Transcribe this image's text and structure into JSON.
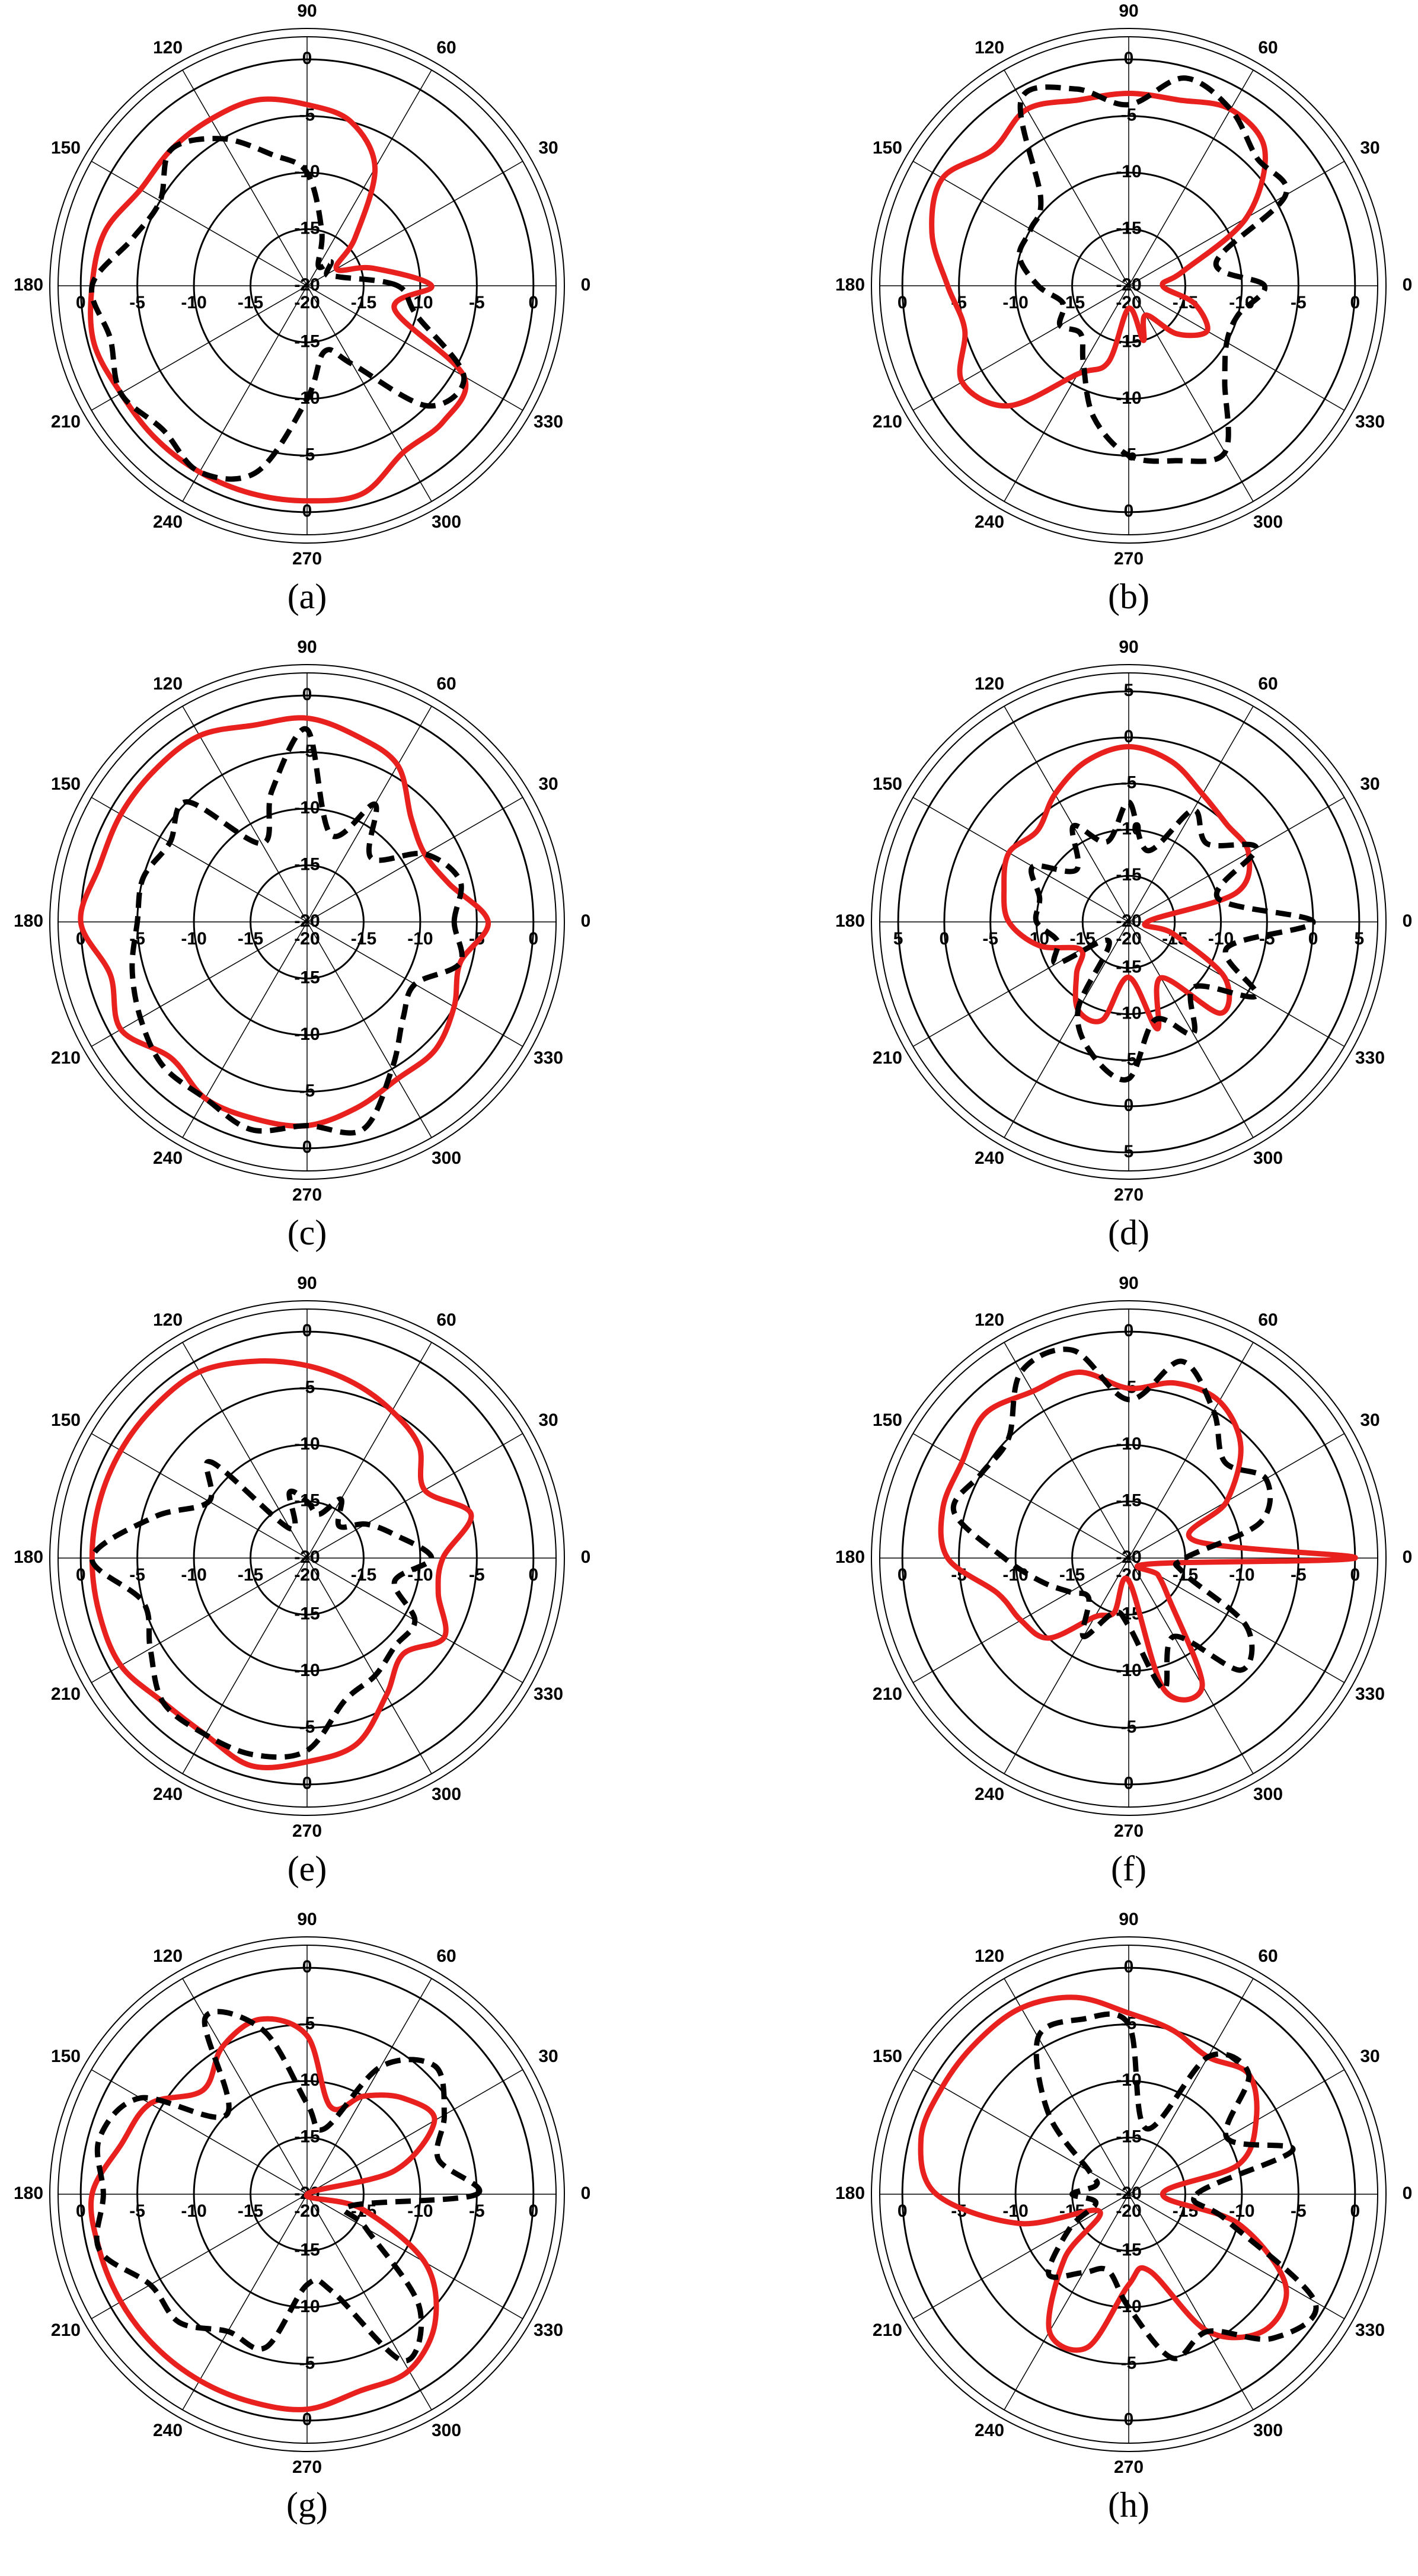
{
  "chart_data": [
    {
      "type": "polar",
      "caption": "(a)",
      "theta": [
        0,
        15,
        30,
        45,
        60,
        75,
        90,
        105,
        120,
        135,
        150,
        165,
        180,
        195,
        210,
        225,
        240,
        255,
        270,
        285,
        300,
        315,
        330,
        345
      ],
      "thetaticks": [
        0,
        30,
        60,
        90,
        120,
        150,
        180,
        210,
        240,
        270,
        300,
        330
      ],
      "rlim": [
        -20,
        2
      ],
      "rticks": [
        -20,
        -15,
        -10,
        -5,
        0
      ],
      "series": [
        {
          "color": "#e8201e",
          "dash": false,
          "values": [
            -9,
            -14,
            -17,
            -14,
            -8,
            -5,
            -4,
            -3,
            -3,
            -3,
            -3,
            -1.5,
            -1,
            -0.5,
            -1,
            -1,
            -1,
            -1,
            -1,
            -1,
            -3,
            -3,
            -4,
            -12
          ]
        },
        {
          "color": "#000000",
          "dash": true,
          "values": [
            -12,
            -17,
            -18,
            -17,
            -18,
            -15,
            -10,
            -8,
            -5,
            -3,
            -5,
            -4,
            -1,
            -2,
            -1,
            -2,
            -1,
            -3,
            -10,
            -14,
            -12,
            -5,
            -4,
            -10
          ]
        }
      ]
    },
    {
      "type": "polar",
      "caption": "(b)",
      "theta": [
        0,
        15,
        30,
        45,
        60,
        75,
        90,
        105,
        120,
        135,
        150,
        165,
        180,
        195,
        210,
        225,
        240,
        255,
        270,
        285,
        300,
        315,
        330,
        345
      ],
      "thetaticks": [
        0,
        30,
        60,
        90,
        120,
        150,
        180,
        210,
        240,
        270,
        300,
        330
      ],
      "rlim": [
        -20,
        2
      ],
      "rticks": [
        -20,
        -15,
        -10,
        -5,
        0
      ],
      "series": [
        {
          "color": "#e8201e",
          "dash": false,
          "values": [
            -17,
            -15,
            -8,
            -3,
            -2,
            -3,
            -3,
            -3,
            -2,
            -3,
            -1,
            -2,
            -4,
            -5,
            -3,
            -5,
            -11,
            -13,
            -18,
            -15,
            -17,
            -14,
            -12,
            -14
          ]
        },
        {
          "color": "#000000",
          "dash": true,
          "values": [
            -8,
            -12,
            -4,
            -4,
            -2,
            -1,
            -4,
            -2,
            -1,
            -9,
            -10,
            -10,
            -12,
            -14,
            -13,
            -14,
            -12,
            -8,
            -5,
            -4,
            -3,
            -8,
            -10,
            -10
          ]
        }
      ]
    },
    {
      "type": "polar",
      "caption": "(c)",
      "theta": [
        0,
        15,
        30,
        45,
        60,
        75,
        90,
        105,
        120,
        135,
        150,
        165,
        180,
        195,
        210,
        225,
        240,
        255,
        270,
        285,
        300,
        315,
        330,
        345
      ],
      "thetaticks": [
        0,
        30,
        60,
        90,
        120,
        150,
        180,
        210,
        240,
        270,
        300,
        330
      ],
      "rlim": [
        -20,
        2
      ],
      "rticks": [
        -20,
        -15,
        -10,
        -5,
        0
      ],
      "series": [
        {
          "color": "#e8201e",
          "dash": false,
          "values": [
            -4,
            -7,
            -8,
            -7,
            -4,
            -3,
            -2,
            -2,
            -1,
            -1,
            -1,
            -1,
            0,
            -2,
            -1,
            -3,
            -2,
            -2,
            -2,
            -3,
            -4,
            -4,
            -5,
            -6
          ]
        },
        {
          "color": "#000000",
          "dash": true,
          "values": [
            -7,
            -6,
            -8,
            -12,
            -8,
            -12,
            -3,
            -8,
            -12,
            -5,
            -6,
            -5,
            -5,
            -4,
            -3,
            -2,
            -2,
            -1,
            -2,
            -1,
            -5,
            -8,
            -9,
            -6
          ]
        }
      ]
    },
    {
      "type": "polar",
      "caption": "(d)",
      "theta": [
        0,
        15,
        30,
        45,
        60,
        75,
        90,
        105,
        120,
        135,
        150,
        165,
        180,
        195,
        210,
        225,
        240,
        255,
        270,
        285,
        300,
        315,
        330,
        345
      ],
      "thetaticks": [
        0,
        30,
        60,
        90,
        120,
        150,
        180,
        210,
        240,
        270,
        300,
        330
      ],
      "rlim": [
        -20,
        7
      ],
      "rticks": [
        -20,
        -15,
        -10,
        -5,
        0,
        5
      ],
      "series": [
        {
          "color": "#e8201e",
          "dash": false,
          "values": [
            -18,
            -8,
            -5,
            -5,
            -4,
            -2,
            -1,
            -2,
            -4,
            -6,
            -5,
            -6,
            -7,
            -10,
            -14,
            -12,
            -9,
            -9,
            -14,
            -8,
            -13,
            -6,
            -8,
            -15
          ]
        },
        {
          "color": "#000000",
          "dash": true,
          "values": [
            0,
            -10,
            -4,
            -8,
            -6,
            -12,
            -7,
            -11,
            -8,
            -12,
            -8,
            -10,
            -10,
            -12,
            -11,
            -17,
            -9,
            -5,
            -3,
            -9,
            -6,
            -10,
            -4,
            -9
          ]
        }
      ]
    },
    {
      "type": "polar",
      "caption": "(e)",
      "theta": [
        0,
        15,
        30,
        45,
        60,
        75,
        90,
        105,
        120,
        135,
        150,
        165,
        180,
        195,
        210,
        225,
        240,
        255,
        270,
        285,
        300,
        315,
        330,
        345
      ],
      "thetaticks": [
        0,
        30,
        60,
        90,
        120,
        150,
        180,
        210,
        240,
        270,
        300,
        330
      ],
      "rlim": [
        -20,
        2
      ],
      "rticks": [
        -20,
        -15,
        -10,
        -5,
        0
      ],
      "series": [
        {
          "color": "#e8201e",
          "dash": false,
          "values": [
            -8,
            -5,
            -8,
            -6,
            -5,
            -4,
            -3,
            -2,
            -1,
            -1,
            -1,
            -1,
            -1,
            -1,
            -1,
            -2,
            -2,
            -1,
            -2,
            -3,
            -6,
            -8,
            -6,
            -8
          ]
        },
        {
          "color": "#000000",
          "dash": true,
          "values": [
            -9,
            -12,
            -14,
            -16,
            -14,
            -16,
            -15,
            -14,
            -17,
            -8,
            -10,
            -6,
            -1,
            -5,
            -4,
            -2,
            -2,
            -2,
            -3,
            -7,
            -8,
            -9,
            -9,
            -12
          ]
        }
      ]
    },
    {
      "type": "polar",
      "caption": "(f)",
      "theta": [
        0,
        15,
        30,
        45,
        60,
        75,
        90,
        105,
        120,
        135,
        150,
        165,
        180,
        195,
        210,
        225,
        240,
        255,
        270,
        285,
        300,
        315,
        330,
        345
      ],
      "thetaticks": [
        0,
        30,
        60,
        90,
        120,
        150,
        180,
        210,
        240,
        270,
        300,
        330
      ],
      "rlim": [
        -20,
        2
      ],
      "rticks": [
        -20,
        -15,
        -10,
        -5,
        0
      ],
      "series": [
        {
          "color": "#e8201e",
          "dash": false,
          "values": [
            0,
            -14,
            -10,
            -6,
            -4,
            -4,
            -5,
            -3,
            -3,
            -2,
            -3,
            -3,
            -4,
            -8,
            -9,
            -10,
            -14,
            -15,
            -18,
            -8,
            -7,
            -15,
            -17,
            -18
          ]
        },
        {
          "color": "#000000",
          "dash": true,
          "values": [
            -15,
            -8,
            -6,
            -8,
            -5,
            -2,
            -6,
            -1,
            -1,
            -5,
            -5,
            -4,
            -9,
            -12,
            -14,
            -15,
            -12,
            -15,
            -14,
            -8,
            -12,
            -6,
            -8,
            -15
          ]
        }
      ]
    },
    {
      "type": "polar",
      "caption": "(g)",
      "theta": [
        0,
        15,
        30,
        45,
        60,
        75,
        90,
        105,
        120,
        135,
        150,
        165,
        180,
        195,
        210,
        225,
        240,
        255,
        270,
        285,
        300,
        315,
        330,
        345
      ],
      "thetaticks": [
        0,
        30,
        60,
        90,
        120,
        150,
        180,
        210,
        240,
        270,
        300,
        330
      ],
      "rlim": [
        -20,
        2
      ],
      "rticks": [
        -20,
        -15,
        -10,
        -5,
        0
      ],
      "series": [
        {
          "color": "#e8201e",
          "dash": false,
          "values": [
            -20,
            -12,
            -7,
            -8,
            -10,
            -12,
            -6,
            -4,
            -5,
            -7,
            -4,
            -3,
            -1,
            -1,
            -1,
            -1,
            -1,
            -1,
            -1,
            -2,
            -2,
            -4,
            -8,
            -15
          ]
        },
        {
          "color": "#000000",
          "dash": true,
          "values": [
            -5,
            -8,
            -6,
            -4,
            -7,
            -14,
            -12,
            -5,
            -2,
            -10,
            -3,
            -1,
            -2,
            -1,
            -4,
            -4,
            -6,
            -6,
            -12,
            -11,
            -3,
            -6,
            -14,
            -16
          ]
        }
      ]
    },
    {
      "type": "polar",
      "caption": "(h)",
      "theta": [
        0,
        15,
        30,
        45,
        60,
        75,
        90,
        105,
        120,
        135,
        150,
        165,
        180,
        195,
        210,
        225,
        240,
        255,
        270,
        285,
        300,
        315,
        330,
        345
      ],
      "thetaticks": [
        0,
        30,
        60,
        90,
        120,
        150,
        180,
        210,
        240,
        270,
        300,
        330
      ],
      "rlim": [
        -20,
        2
      ],
      "rticks": [
        -20,
        -15,
        -10,
        -5,
        0
      ],
      "series": [
        {
          "color": "#e8201e",
          "dash": false,
          "values": [
            -17,
            -10,
            -7,
            -5,
            -6,
            -5,
            -4,
            -2,
            -1,
            -1,
            -1,
            -1,
            -3,
            -10,
            -17,
            -12,
            -6,
            -6,
            -12,
            -13,
            -6,
            -3,
            -4,
            -10
          ]
        },
        {
          "color": "#000000",
          "dash": true,
          "values": [
            -14,
            -5,
            -10,
            -5,
            -6,
            -14,
            -5,
            -4,
            -4,
            -10,
            -16,
            -17,
            -15,
            -17,
            -14,
            -10,
            -12,
            -13,
            -10,
            -5,
            -6,
            -2,
            -1,
            -11
          ]
        }
      ]
    }
  ]
}
